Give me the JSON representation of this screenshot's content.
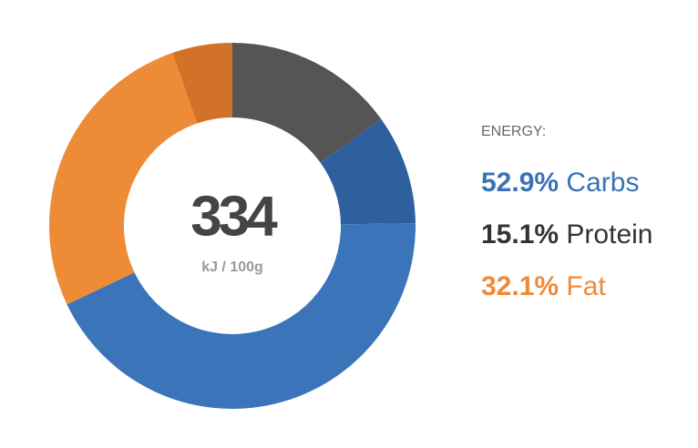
{
  "chart_data": {
    "type": "donut",
    "center_value": 334,
    "center_unit": "kJ / 100g",
    "legend_title": "ENERGY:",
    "categories": [
      "Carbs",
      "Protein",
      "Fat"
    ],
    "values": [
      52.9,
      15.1,
      32.1
    ],
    "value_labels": [
      "52.9%",
      "15.1%",
      "32.1%"
    ],
    "colors": [
      "#3a72b5",
      "#333333",
      "#ee8b38"
    ],
    "segments": {
      "values": [
        15.1,
        9.7,
        43.2,
        26.8,
        5.3
      ],
      "colors": [
        "#555555",
        "#2e5f9e",
        "#3b74b8",
        "#ed8b37",
        "#d27228"
      ]
    }
  }
}
